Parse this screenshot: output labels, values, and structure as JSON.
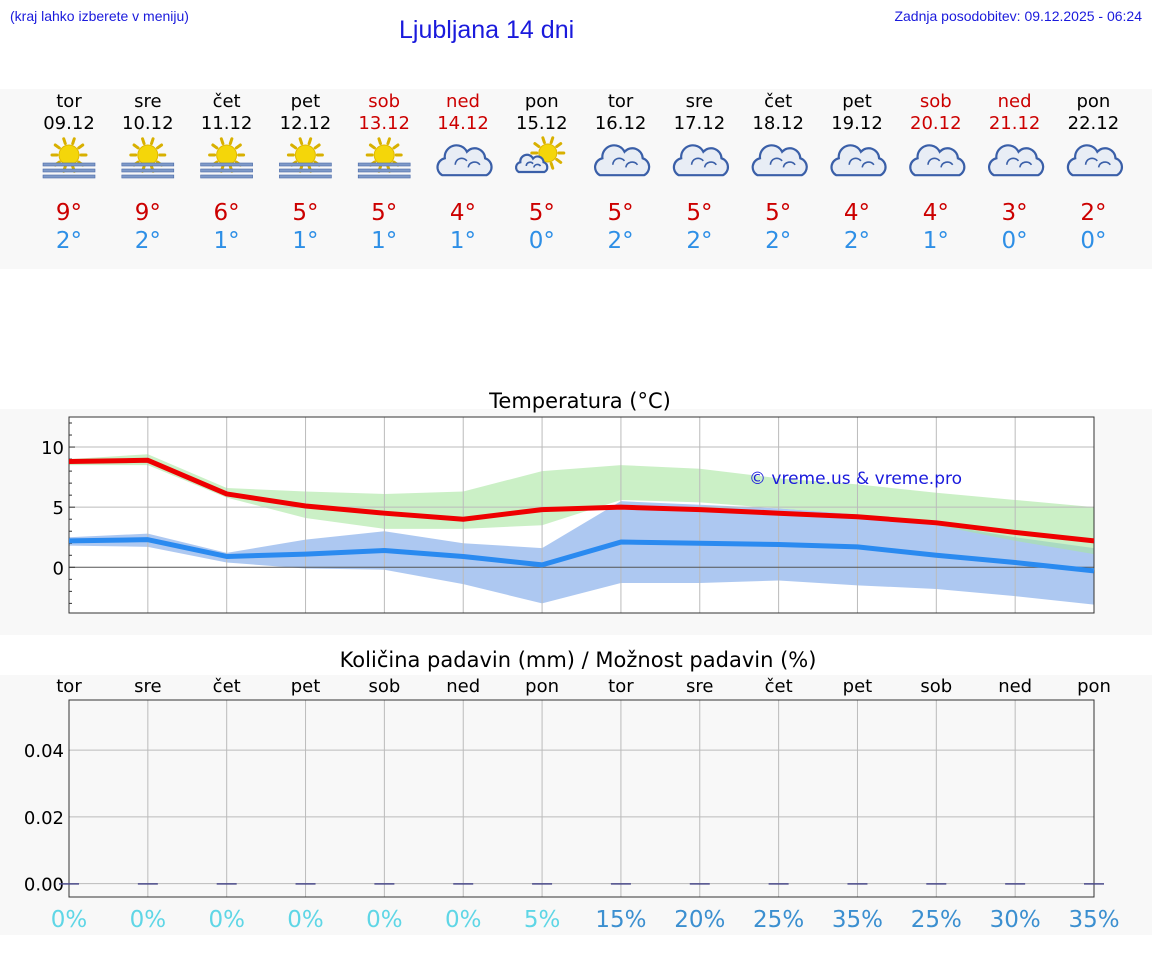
{
  "header": {
    "hint": "(kraj lahko izberete v meniju)",
    "title": "Ljubljana 14 dni",
    "updated": "Zadnja posodobitev: 09.12.2025 - 06:24"
  },
  "colors": {
    "weekday": "#000000",
    "weekend": "#cc0000",
    "tmax": "#cc0000",
    "tmin": "#2e8fe6",
    "link": "#1a1adc",
    "prob_low": "#5fd6e6",
    "prob_high": "#3b8fd0"
  },
  "days": [
    {
      "day": "tor",
      "date": "09.12",
      "weekend": false,
      "icon": "sun-fog-icon",
      "tmax": "9°",
      "tmin": "2°"
    },
    {
      "day": "sre",
      "date": "10.12",
      "weekend": false,
      "icon": "sun-fog-icon",
      "tmax": "9°",
      "tmin": "2°"
    },
    {
      "day": "čet",
      "date": "11.12",
      "weekend": false,
      "icon": "sun-fog-icon",
      "tmax": "6°",
      "tmin": "1°"
    },
    {
      "day": "pet",
      "date": "12.12",
      "weekend": false,
      "icon": "sun-fog-icon",
      "tmax": "5°",
      "tmin": "1°"
    },
    {
      "day": "sob",
      "date": "13.12",
      "weekend": true,
      "icon": "sun-fog-icon",
      "tmax": "5°",
      "tmin": "1°"
    },
    {
      "day": "ned",
      "date": "14.12",
      "weekend": true,
      "icon": "cloud-icon",
      "tmax": "4°",
      "tmin": "1°"
    },
    {
      "day": "pon",
      "date": "15.12",
      "weekend": false,
      "icon": "sun-cloud-icon",
      "tmax": "5°",
      "tmin": "0°"
    },
    {
      "day": "tor",
      "date": "16.12",
      "weekend": false,
      "icon": "cloud-icon",
      "tmax": "5°",
      "tmin": "2°"
    },
    {
      "day": "sre",
      "date": "17.12",
      "weekend": false,
      "icon": "cloud-icon",
      "tmax": "5°",
      "tmin": "2°"
    },
    {
      "day": "čet",
      "date": "18.12",
      "weekend": false,
      "icon": "cloud-icon",
      "tmax": "5°",
      "tmin": "2°"
    },
    {
      "day": "pet",
      "date": "19.12",
      "weekend": false,
      "icon": "cloud-icon",
      "tmax": "4°",
      "tmin": "2°"
    },
    {
      "day": "sob",
      "date": "20.12",
      "weekend": true,
      "icon": "cloud-icon",
      "tmax": "4°",
      "tmin": "1°"
    },
    {
      "day": "ned",
      "date": "21.12",
      "weekend": true,
      "icon": "cloud-icon",
      "tmax": "3°",
      "tmin": "0°"
    },
    {
      "day": "pon",
      "date": "22.12",
      "weekend": false,
      "icon": "cloud-icon",
      "tmax": "2°",
      "tmin": "0°"
    }
  ],
  "chart_data": [
    {
      "type": "line",
      "title": "Temperatura (°C)",
      "x": [
        "09.12",
        "10.12",
        "11.12",
        "12.12",
        "13.12",
        "14.12",
        "15.12",
        "16.12",
        "17.12",
        "18.12",
        "19.12",
        "20.12",
        "21.12",
        "22.12"
      ],
      "ylim": [
        -3.8,
        12.5
      ],
      "yticks": [
        0,
        5,
        10
      ],
      "grid": true,
      "watermark": "© vreme.us & vreme.pro",
      "series": [
        {
          "role": "tmax",
          "color": "#ee0000",
          "values": [
            8.8,
            8.9,
            6.1,
            5.1,
            4.5,
            4.0,
            4.8,
            5.0,
            4.8,
            4.5,
            4.2,
            3.7,
            2.9,
            2.2
          ]
        },
        {
          "role": "tmin",
          "color": "#2a8af0",
          "values": [
            2.2,
            2.3,
            0.9,
            1.1,
            1.4,
            0.9,
            0.2,
            2.1,
            2.0,
            1.9,
            1.7,
            1.0,
            0.4,
            -0.3
          ]
        }
      ],
      "bands": [
        {
          "role": "tmax-range",
          "color": "#a8e6a0",
          "upper": [
            9.0,
            9.4,
            6.6,
            6.3,
            6.1,
            6.3,
            8.0,
            8.5,
            8.2,
            7.4,
            6.9,
            6.2,
            5.6,
            5.0
          ],
          "lower": [
            8.5,
            8.5,
            5.8,
            4.1,
            3.2,
            3.2,
            3.5,
            5.6,
            5.4,
            4.9,
            4.4,
            3.5,
            2.2,
            1.1
          ]
        },
        {
          "role": "tmin-range",
          "color": "#a4c2f0",
          "upper": [
            2.5,
            2.8,
            1.2,
            2.3,
            3.0,
            2.0,
            1.6,
            5.5,
            5.2,
            4.9,
            4.4,
            3.6,
            2.5,
            1.6
          ]
        },
        {
          "role": "tmin-range-lower",
          "color": "#a4c2f0",
          "lower": [
            1.8,
            1.7,
            0.4,
            -0.1,
            -0.2,
            -1.4,
            -3.0,
            -1.3,
            -1.3,
            -1.1,
            -1.5,
            -1.8,
            -2.4,
            -3.1
          ]
        }
      ]
    },
    {
      "type": "bar",
      "title": "Količina padavin (mm) / Možnost padavin (%)",
      "categories": [
        "tor",
        "sre",
        "čet",
        "pet",
        "sob",
        "ned",
        "pon",
        "tor",
        "sre",
        "čet",
        "pet",
        "sob",
        "ned",
        "pon"
      ],
      "values": [
        0,
        0,
        0,
        0,
        0,
        0,
        0,
        0,
        0,
        0,
        0,
        0,
        0,
        0
      ],
      "ylim": [
        -0.004,
        0.055
      ],
      "yticks": [
        "0.00",
        "0.02",
        "0.04"
      ],
      "ytick_values": [
        0,
        0.02,
        0.04
      ],
      "probability_labels": [
        "0%",
        "0%",
        "0%",
        "0%",
        "0%",
        "0%",
        "5%",
        "15%",
        "20%",
        "25%",
        "35%",
        "25%",
        "30%",
        "35%"
      ],
      "probability_values": [
        0,
        0,
        0,
        0,
        0,
        0,
        5,
        15,
        20,
        25,
        35,
        25,
        30,
        35
      ],
      "grid": true
    }
  ]
}
